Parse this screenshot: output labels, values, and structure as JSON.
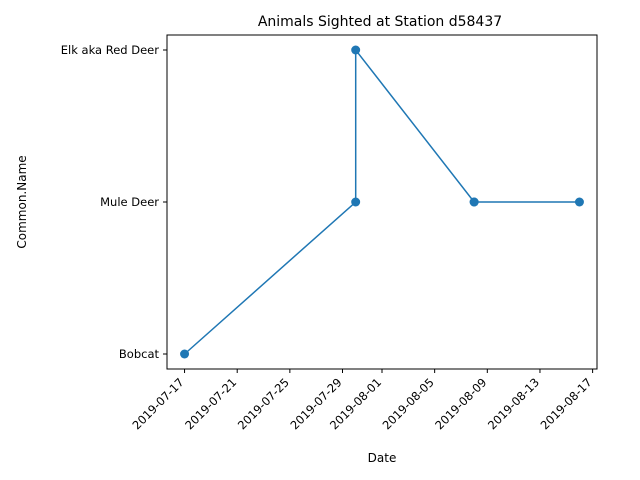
{
  "chart_data": {
    "type": "line",
    "title": "Animals Sighted at Station d58437",
    "xlabel": "Date",
    "ylabel": "Common.Name",
    "x_ticks": [
      "2019-07-17",
      "2019-07-21",
      "2019-07-25",
      "2019-07-29",
      "2019-08-01",
      "2019-08-05",
      "2019-08-09",
      "2019-08-13",
      "2019-08-17"
    ],
    "categories_y": [
      "Bobcat",
      "Mule Deer",
      "Elk aka Red Deer"
    ],
    "xlim": [
      "2019-07-15T16:00",
      "2019-08-17T08:00"
    ],
    "points": [
      {
        "x": "2019-07-17",
        "y": "Bobcat"
      },
      {
        "x": "2019-07-30",
        "y": "Mule Deer"
      },
      {
        "x": "2019-07-30",
        "y": "Elk aka Red Deer"
      },
      {
        "x": "2019-08-08",
        "y": "Mule Deer"
      },
      {
        "x": "2019-08-08",
        "y": "Mule Deer"
      },
      {
        "x": "2019-08-16",
        "y": "Mule Deer"
      }
    ],
    "color": "#1f77b4",
    "marker": "circle",
    "grid": false,
    "legend": "none"
  }
}
